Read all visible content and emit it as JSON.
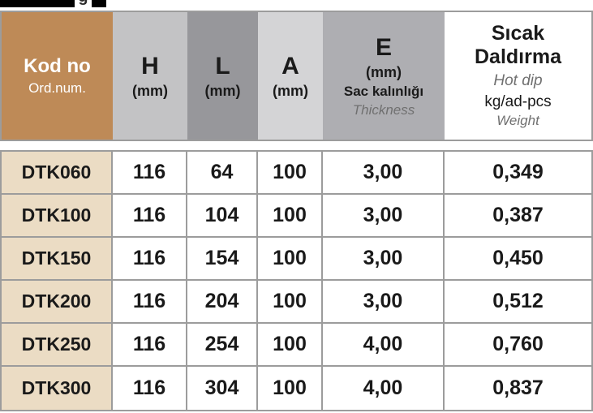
{
  "top": {
    "fragment": "g"
  },
  "header": {
    "code": {
      "line1": "Kod no",
      "line2": "Ord.num."
    },
    "h": {
      "line1": "H",
      "line2": "(mm)"
    },
    "l": {
      "line1": "L",
      "line2": "(mm)"
    },
    "a": {
      "line1": "A",
      "line2": "(mm)"
    },
    "e": {
      "line1": "E",
      "line2": "(mm)",
      "line3": "Sac kalınlığı",
      "line4": "Thickness"
    },
    "weight": {
      "line1": "Sıcak Daldırma",
      "line2": "Hot dip",
      "line3": "kg/ad-pcs",
      "line4": "Weight"
    }
  },
  "rows": [
    {
      "code": "DTK060",
      "h": "116",
      "l": "64",
      "a": "100",
      "e": "3,00",
      "weight": "0,349"
    },
    {
      "code": "DTK100",
      "h": "116",
      "l": "104",
      "a": "100",
      "e": "3,00",
      "weight": "0,387"
    },
    {
      "code": "DTK150",
      "h": "116",
      "l": "154",
      "a": "100",
      "e": "3,00",
      "weight": "0,450"
    },
    {
      "code": "DTK200",
      "h": "116",
      "l": "204",
      "a": "100",
      "e": "3,00",
      "weight": "0,512"
    },
    {
      "code": "DTK250",
      "h": "116",
      "l": "254",
      "a": "100",
      "e": "4,00",
      "weight": "0,760"
    },
    {
      "code": "DTK300",
      "h": "116",
      "l": "304",
      "a": "100",
      "e": "4,00",
      "weight": "0,837"
    }
  ],
  "colors": {
    "brown": "#BE8A57",
    "beige": "#EBDCC4",
    "gray_h": "#C3C3C5",
    "gray_l": "#97979B",
    "gray_a": "#D4D4D6",
    "gray_e": "#AEAEB2",
    "border": "#9C9C9C",
    "text_dark": "#1A1A1A",
    "text_muted": "#707070"
  }
}
